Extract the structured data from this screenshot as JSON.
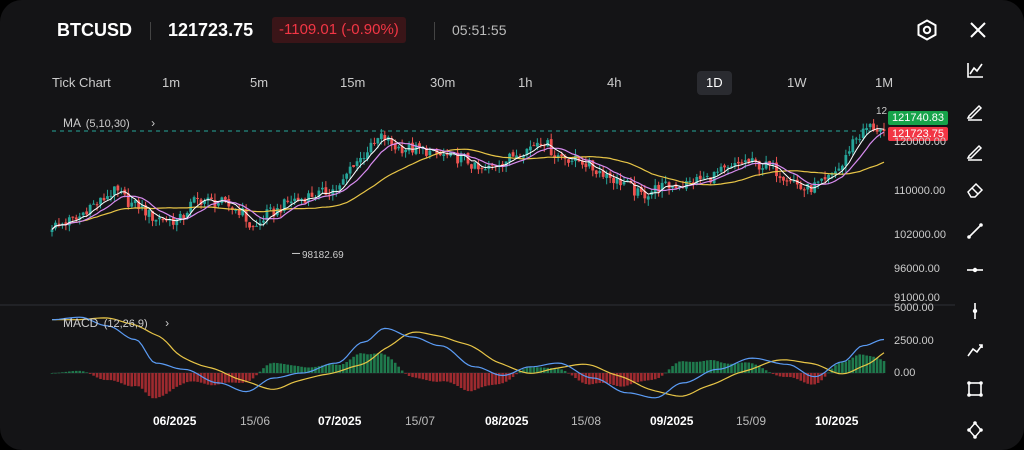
{
  "header": {
    "symbol": "BTCUSD",
    "price": "121723.75",
    "change": "-1109.01 (-0.90%)",
    "time": "05:51:55",
    "settings_icon": "hexagon-settings-icon",
    "close_icon": "close-icon"
  },
  "timeframes": [
    {
      "label": "Tick Chart"
    },
    {
      "label": "1m"
    },
    {
      "label": "5m"
    },
    {
      "label": "15m"
    },
    {
      "label": "30m"
    },
    {
      "label": "1h"
    },
    {
      "label": "4h"
    },
    {
      "label": "1D",
      "active": true
    },
    {
      "label": "1W"
    },
    {
      "label": "1M"
    }
  ],
  "toolbar": {
    "icons": [
      "line-chart-icon",
      "pencil-icon",
      "pencil-icon",
      "eraser-icon",
      "trend-line-icon",
      "horizontal-line-icon",
      "vertical-line-icon",
      "polyline-icon",
      "rectangle-icon",
      "network-icon"
    ]
  },
  "indicators": {
    "ma": {
      "name": "MA",
      "params": "(5,10,30)"
    },
    "macd": {
      "name": "MACD",
      "params": "(12,26,9)"
    }
  },
  "price_axis": {
    "ticks": [
      "120000.00",
      "110000.00",
      "102000.00",
      "96000.00",
      "91000.00"
    ],
    "high_tag": "121740.83",
    "last_tag": "121723.75",
    "low_label": "98182.69",
    "high_label": "12"
  },
  "macd_axis": {
    "ticks": [
      "5000.00",
      "2500.00",
      "0.00"
    ]
  },
  "time_axis": {
    "ticks": [
      {
        "label": "06/2025",
        "major": true
      },
      {
        "label": "15/06",
        "major": false
      },
      {
        "label": "07/2025",
        "major": true
      },
      {
        "label": "15/07",
        "major": false
      },
      {
        "label": "08/2025",
        "major": true
      },
      {
        "label": "15/08",
        "major": false
      },
      {
        "label": "09/2025",
        "major": true
      },
      {
        "label": "15/09",
        "major": false
      },
      {
        "label": "10/2025",
        "major": true
      }
    ]
  },
  "colors": {
    "up": "#26a69a",
    "down": "#ef5350",
    "ma5": "#ffffff",
    "ma10": "#d88cf0",
    "ma30": "#e8c547",
    "macd_line": "#5b9cf5",
    "signal_line": "#e8c547",
    "accent_red": "#f23645",
    "accent_green": "#16a34a"
  },
  "chart_data": {
    "type": "candlestick",
    "period": "1D",
    "anchors": [
      [
        0,
        103500
      ],
      [
        6,
        104500
      ],
      [
        12,
        107500
      ],
      [
        18,
        110000
      ],
      [
        24,
        107500
      ],
      [
        30,
        105000
      ],
      [
        36,
        104500
      ],
      [
        42,
        108500
      ],
      [
        48,
        108000
      ],
      [
        54,
        106500
      ],
      [
        58,
        103000
      ],
      [
        63,
        106000
      ],
      [
        70,
        108500
      ],
      [
        76,
        109500
      ],
      [
        82,
        110500
      ],
      [
        88,
        116000
      ],
      [
        92,
        118500
      ],
      [
        95,
        120500
      ],
      [
        100,
        118500
      ],
      [
        106,
        118200
      ],
      [
        112,
        117000
      ],
      [
        118,
        116500
      ],
      [
        124,
        114000
      ],
      [
        130,
        116000
      ],
      [
        136,
        118000
      ],
      [
        141,
        120000
      ],
      [
        146,
        117000
      ],
      [
        152,
        116000
      ],
      [
        158,
        114000
      ],
      [
        164,
        112000
      ],
      [
        170,
        109500
      ],
      [
        176,
        111000
      ],
      [
        182,
        111500
      ],
      [
        188,
        112500
      ],
      [
        194,
        114000
      ],
      [
        200,
        115800
      ],
      [
        206,
        115000
      ],
      [
        212,
        113000
      ],
      [
        217,
        110500
      ],
      [
        222,
        111500
      ],
      [
        227,
        114500
      ],
      [
        232,
        120500
      ],
      [
        236,
        122500
      ],
      [
        240,
        121700
      ]
    ],
    "macd_anchors": [
      [
        0,
        4300
      ],
      [
        8,
        4500
      ],
      [
        16,
        3800
      ],
      [
        24,
        2700
      ],
      [
        30,
        800
      ],
      [
        38,
        300
      ],
      [
        48,
        -800
      ],
      [
        56,
        -1500
      ],
      [
        64,
        -400
      ],
      [
        72,
        0
      ],
      [
        82,
        800
      ],
      [
        90,
        2500
      ],
      [
        96,
        3600
      ],
      [
        104,
        2900
      ],
      [
        112,
        2200
      ],
      [
        122,
        500
      ],
      [
        130,
        -200
      ],
      [
        138,
        500
      ],
      [
        146,
        800
      ],
      [
        156,
        -400
      ],
      [
        166,
        -1600
      ],
      [
        174,
        -2000
      ],
      [
        182,
        -800
      ],
      [
        192,
        300
      ],
      [
        202,
        1200
      ],
      [
        212,
        700
      ],
      [
        220,
        -300
      ],
      [
        228,
        900
      ],
      [
        234,
        2200
      ],
      [
        240,
        2700
      ]
    ]
  }
}
